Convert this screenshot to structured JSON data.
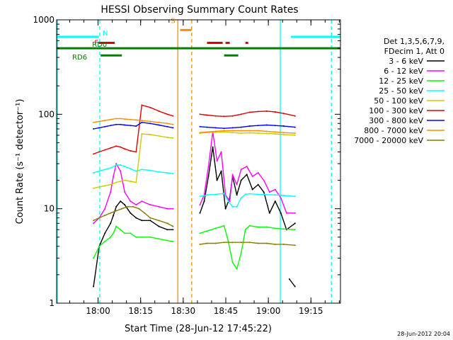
{
  "chart_data": {
    "type": "line",
    "title": "HESSI Observing Summary Count Rates",
    "xlabel": "Start Time (28-Jun-12 17:45:22)",
    "ylabel": "Count Rate (s⁻¹ detector⁻¹)",
    "y_scale": "log",
    "ylim": [
      1,
      1000
    ],
    "xlim_minutes_from_17_45_22": [
      0,
      100
    ],
    "x_ticks": [
      {
        "label": "18:00",
        "t": 14.6
      },
      {
        "label": "18:15",
        "t": 29.6
      },
      {
        "label": "18:30",
        "t": 44.6
      },
      {
        "label": "18:45",
        "t": 59.6
      },
      {
        "label": "19:00",
        "t": 74.6
      },
      {
        "label": "19:15",
        "t": 89.6
      }
    ],
    "y_ticks": [
      {
        "label": "1",
        "v": 1
      },
      {
        "label": "10",
        "v": 10
      },
      {
        "label": "100",
        "v": 100
      },
      {
        "label": "1000",
        "v": 1000
      }
    ],
    "legend_header": [
      "Det 1,3,5,6,7,9,",
      "FDecim 1, Att 0"
    ],
    "legend_position": "right",
    "series": [
      {
        "name": "3 - 6 keV",
        "color": "#000000",
        "segments": [
          {
            "x": [
              13.0,
              15.0,
              17.0,
              19.0,
              20.0,
              21.0,
              22.5,
              24.0,
              26.0,
              28.0,
              30.0,
              33.0,
              36.0,
              39.0,
              41.0
            ],
            "y": [
              1.5,
              4,
              5.5,
              7,
              8.5,
              10.5,
              12,
              11,
              9,
              8,
              7.5,
              7.5,
              6.5,
              6,
              6
            ]
          },
          {
            "x": [
              50.5,
              52.0,
              53.5,
              55.0,
              56.5,
              58.0,
              59.5,
              61.0,
              62.0,
              63.5,
              65.0,
              67.0,
              69.0,
              71.0,
              73.0,
              75.0,
              77.0,
              79.0,
              81.0,
              84.0
            ],
            "y": [
              9,
              12,
              22,
              45,
              20,
              25,
              10,
              13,
              22,
              14,
              20,
              23,
              16,
              18,
              15,
              9,
              12,
              9,
              6,
              7
            ]
          },
          {
            "x": [
              82.0,
              84.0
            ],
            "y": [
              1.8,
              1.5
            ]
          }
        ]
      },
      {
        "name": "6 - 12 keV",
        "color": "#ff00ff",
        "segments": [
          {
            "x": [
              13.0,
              15.0,
              17.0,
              19.0,
              20.0,
              21.0,
              22.5,
              24.0,
              26.0,
              28.0,
              30.0,
              33.0,
              36.0,
              39.0,
              41.0
            ],
            "y": [
              7,
              8,
              10,
              15,
              22,
              30,
              25,
              15,
              12,
              11,
              12,
              11,
              10.5,
              10,
              10
            ]
          },
          {
            "x": [
              50.5,
              52.0,
              53.5,
              55.0,
              56.5,
              58.0,
              59.5,
              61.0,
              62.0,
              63.5,
              65.0,
              67.0,
              69.0,
              71.0,
              73.0,
              75.0,
              77.0,
              79.0,
              81.0,
              84.0
            ],
            "y": [
              11,
              14,
              28,
              65,
              32,
              40,
              14,
              12,
              23,
              18,
              26,
              28,
              22,
              24,
              20,
              15,
              16,
              13,
              9,
              9
            ]
          }
        ]
      },
      {
        "name": "12 - 25 keV",
        "color": "#00ff00",
        "segments": [
          {
            "x": [
              13.0,
              15.0,
              17.0,
              19.0,
              20.0,
              21.0,
              22.5,
              24.0,
              26.0,
              28.0,
              30.0,
              33.0,
              36.0,
              39.0,
              41.0
            ],
            "y": [
              3,
              4,
              4.5,
              5,
              5.5,
              6.5,
              6,
              5.5,
              5.5,
              5,
              5,
              5,
              4.8,
              4.6,
              4.5
            ]
          },
          {
            "x": [
              50.5,
              53.0,
              56.0,
              59.0,
              60.5,
              62.0,
              63.5,
              65.0,
              66.5,
              68.0,
              71.0,
              74.0,
              77.0,
              80.0,
              84.0
            ],
            "y": [
              5.5,
              5.8,
              6.2,
              6.6,
              4.5,
              2.7,
              2.3,
              3.4,
              6,
              6.6,
              6.4,
              6.4,
              6.2,
              6.1,
              6
            ]
          }
        ]
      },
      {
        "name": "25 - 50 keV",
        "color": "#00ffff",
        "segments": [
          {
            "x": [
              13.0,
              15.0,
              17.0,
              19.0,
              21.0,
              22.5,
              24.0,
              26.0,
              28.0,
              30.0,
              33.0,
              36.0,
              39.0,
              41.0
            ],
            "y": [
              24,
              25,
              26,
              27,
              29,
              29,
              28,
              26.5,
              25,
              26,
              25.5,
              24.5,
              24,
              23.5
            ]
          },
          {
            "x": [
              50.5,
              53.0,
              56.0,
              59.0,
              60.5,
              62.0,
              63.5,
              65.0,
              66.5,
              68.0,
              71.0,
              74.0,
              77.0,
              80.0,
              84.0
            ],
            "y": [
              13.5,
              14,
              14.2,
              14.5,
              12,
              10.5,
              10.5,
              13,
              14.2,
              14.4,
              14.2,
              14.1,
              14,
              13.8,
              13.5
            ]
          }
        ]
      },
      {
        "name": "50 - 100 keV",
        "color": "#cccc00",
        "segments": [
          {
            "x": [
              13.0,
              15.0,
              17.0,
              19.0,
              21.0,
              22.5,
              24.0,
              26.0,
              28.0,
              30.0,
              33.0,
              36.0,
              39.0,
              41.0
            ],
            "y": [
              16.5,
              17,
              17.5,
              18,
              19,
              19.5,
              20,
              19.5,
              19,
              62,
              61,
              59,
              57,
              56
            ]
          },
          {
            "x": [
              50.5,
              53.0,
              56.0,
              59.0,
              62.0,
              65.0,
              68.0,
              71.0,
              74.0,
              77.0,
              80.0,
              84.0
            ],
            "y": [
              63,
              64,
              64.5,
              65,
              64,
              63,
              63.5,
              63,
              62.5,
              62,
              61,
              60
            ]
          }
        ]
      },
      {
        "name": "100 - 300 keV",
        "color": "#e00000",
        "segments": [
          {
            "x": [
              13.0,
              15.0,
              17.0,
              19.0,
              21.0,
              22.5,
              24.0,
              26.0,
              28.0,
              30.0,
              33.0,
              36.0,
              39.0,
              41.0
            ],
            "y": [
              38,
              40,
              42,
              44,
              46,
              45,
              43,
              41,
              40,
              125,
              118,
              108,
              100,
              96
            ]
          },
          {
            "x": [
              50.5,
              53.0,
              56.0,
              59.0,
              62.0,
              65.0,
              68.0,
              71.0,
              74.0,
              77.0,
              80.0,
              84.0
            ],
            "y": [
              100,
              98,
              96,
              95,
              96,
              100,
              105,
              107,
              108,
              106,
              102,
              96
            ]
          }
        ]
      },
      {
        "name": "300 - 800 keV",
        "color": "#0000ff",
        "segments": [
          {
            "x": [
              13.0,
              15.0,
              17.0,
              19.0,
              21.0,
              22.5,
              24.0,
              26.0,
              28.0,
              30.0,
              33.0,
              36.0,
              39.0,
              41.0
            ],
            "y": [
              70,
              72,
              74,
              76,
              78,
              78,
              77,
              76,
              75,
              82,
              80,
              77,
              74,
              72
            ]
          },
          {
            "x": [
              50.5,
              53.0,
              56.0,
              59.0,
              62.0,
              65.0,
              68.0,
              71.0,
              74.0,
              77.0,
              80.0,
              84.0
            ],
            "y": [
              74,
              73,
              72,
              71,
              72,
              73,
              75,
              76,
              77,
              76,
              75,
              73
            ]
          }
        ]
      },
      {
        "name": "800 - 7000 keV",
        "color": "#ff8c00",
        "segments": [
          {
            "x": [
              13.0,
              15.0,
              17.0,
              19.0,
              21.0,
              22.5,
              24.0,
              26.0,
              28.0,
              30.0,
              33.0,
              36.0,
              39.0,
              41.0
            ],
            "y": [
              82,
              84,
              86,
              88,
              90,
              90,
              89,
              88,
              87,
              86,
              84,
              82,
              80,
              78
            ]
          },
          {
            "x": [
              50.5,
              53.0,
              56.0,
              59.0,
              62.0,
              65.0,
              68.0,
              71.0,
              74.0,
              77.0,
              80.0,
              84.0
            ],
            "y": [
              64,
              65,
              66,
              67,
              67,
              67,
              67,
              67,
              66,
              65,
              64,
              63
            ]
          }
        ]
      },
      {
        "name": "7000 - 20000 keV",
        "color": "#8b7a00",
        "segments": [
          {
            "x": [
              13.0,
              15.0,
              17.0,
              19.0,
              21.0,
              23.0,
              25.0,
              27.0,
              29.0,
              31.0,
              33.0,
              36.0,
              39.0,
              41.0
            ],
            "y": [
              7.5,
              8,
              8.5,
              9,
              9.5,
              10,
              10.5,
              10.5,
              10,
              9,
              8,
              7.5,
              7,
              6.5
            ]
          },
          {
            "x": [
              50.5,
              53.0,
              56.0,
              59.0,
              62.0,
              65.0,
              68.0,
              71.0,
              74.0,
              77.0,
              80.0,
              84.0
            ],
            "y": [
              4.2,
              4.3,
              4.3,
              4.4,
              4.4,
              4.4,
              4.4,
              4.3,
              4.3,
              4.2,
              4.2,
              4.1
            ]
          }
        ]
      }
    ],
    "flag_bars": [
      {
        "label": "N",
        "label_color": "#00ffff",
        "color": "#00ffff",
        "y": 660,
        "segments": [
          [
            0,
            14.8
          ],
          [
            82.5,
            100
          ]
        ]
      },
      {
        "label": "F",
        "label_color": "#e00000",
        "color": "#e00000",
        "y": 570,
        "segments": [
          [
            14.8,
            20.5
          ],
          [
            53.0,
            58.5
          ],
          [
            59.5,
            61.0
          ],
          [
            66.5,
            67.5
          ]
        ]
      },
      {
        "label": "S",
        "label_color": "#ff8c00",
        "color": "#ff8c00",
        "y": 780,
        "segments": [
          [
            43.5,
            47.5
          ]
        ]
      },
      {
        "label": "RD0",
        "label_color": "#008000",
        "color": "#008000",
        "y": 500,
        "segments": [
          [
            0,
            100
          ]
        ]
      },
      {
        "label": "RD6",
        "label_color": "#008000",
        "color": "#008000",
        "y": 420,
        "segments": [
          [
            15.5,
            23.0
          ],
          [
            59.0,
            64.0
          ]
        ]
      }
    ],
    "vertical_markers": [
      {
        "t": 0.3,
        "color": "#00ffff",
        "style": "solid"
      },
      {
        "t": 15.2,
        "color": "#00ffff",
        "style": "dashed"
      },
      {
        "t": 42.7,
        "color": "#ff8c00",
        "style": "solid"
      },
      {
        "t": 47.6,
        "color": "#ff8c00",
        "style": "dashed"
      },
      {
        "t": 78.8,
        "color": "#00ffff",
        "style": "solid"
      },
      {
        "t": 96.8,
        "color": "#00ffff",
        "style": "dashed"
      }
    ],
    "timestamp": "28-Jun-2012 20:04"
  }
}
